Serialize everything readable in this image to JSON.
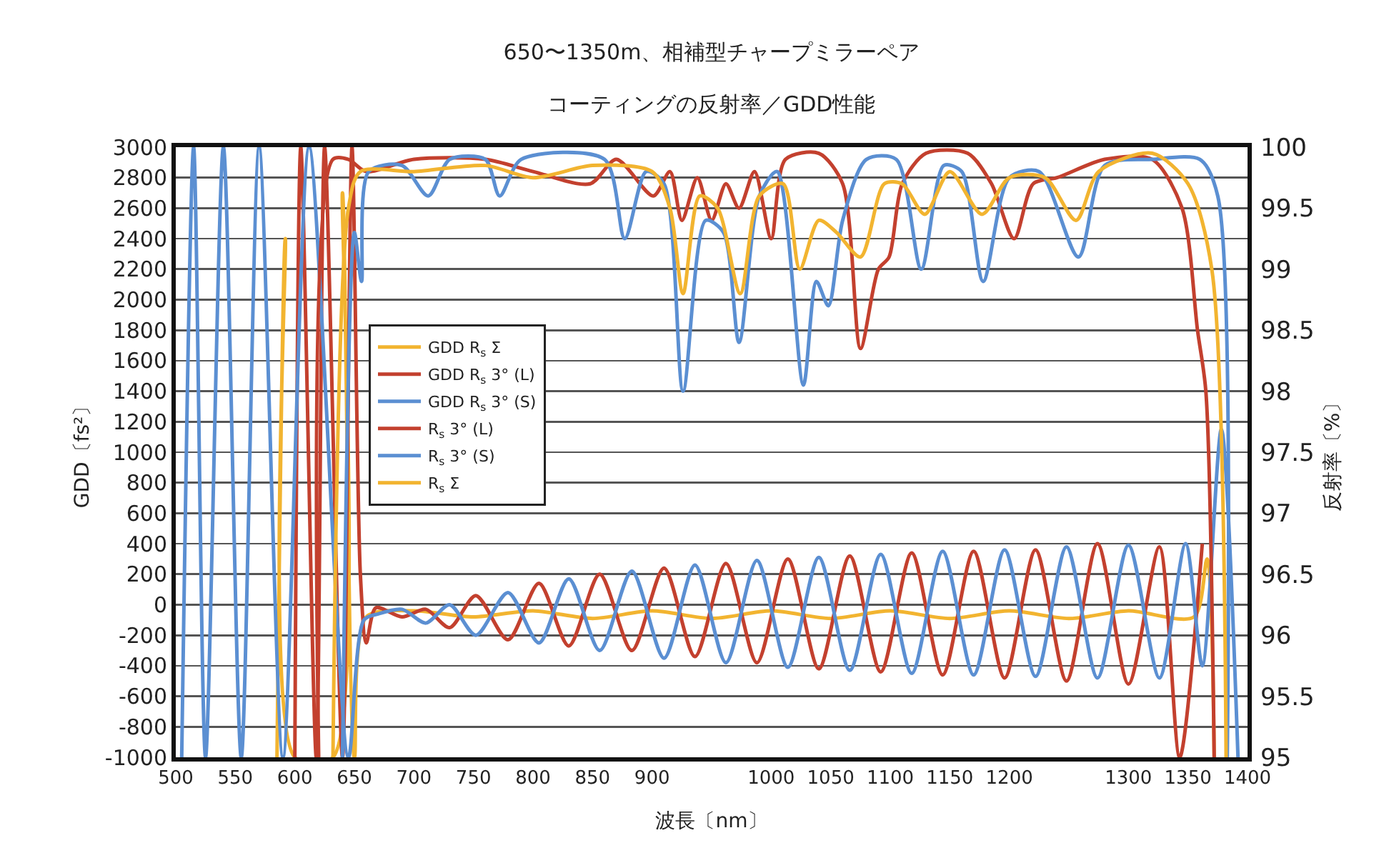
{
  "chart_data": {
    "type": "line",
    "title": "650〜1350m、相補型チャープミラーペア",
    "subtitle": "コーティングの反射率／GDD性能",
    "xlabel": "波長〔nm〕",
    "ylabel": "GDD〔fs²〕",
    "y2label": "反射率〔%〕",
    "xlim": [
      500,
      1400
    ],
    "xticks": [
      500,
      550,
      600,
      650,
      700,
      750,
      800,
      850,
      900,
      1000,
      1050,
      1100,
      1150,
      1200,
      1300,
      1350,
      1400
    ],
    "ylim": [
      -1000,
      3000
    ],
    "yticks": [
      -1000,
      -800,
      -600,
      -400,
      -200,
      0,
      200,
      400,
      600,
      800,
      1000,
      1200,
      1400,
      1600,
      1800,
      2000,
      2200,
      2400,
      2600,
      2800,
      3000
    ],
    "y2lim": [
      95,
      100
    ],
    "y2ticks": [
      95,
      95.5,
      96,
      96.5,
      97,
      97.5,
      98,
      98.5,
      99,
      99.5,
      100
    ],
    "grid": "y",
    "legend": "left",
    "series": [
      {
        "name": "GDD R$_{s}$ Σ",
        "color": "#f2b430",
        "x": [
          585,
          592,
          600,
          632,
          640,
          650,
          660,
          700,
          750,
          800,
          850,
          900,
          950,
          1000,
          1050,
          1100,
          1150,
          1200,
          1250,
          1300,
          1355,
          1366,
          1372
        ],
        "values": [
          -1000,
          2400,
          -1000,
          -1000,
          2700,
          -1000,
          -80,
          -40,
          -80,
          -40,
          -90,
          -40,
          -90,
          -40,
          -90,
          -40,
          -90,
          -40,
          -90,
          -40,
          -80,
          300,
          -1000
        ]
      },
      {
        "name": "GDD R$_{s}$ 3° (L)",
        "color": "#c3402e",
        "x": [
          600,
          605,
          618,
          625,
          640,
          648,
          655,
          660,
          668,
          690,
          710,
          730,
          752,
          779,
          805,
          830,
          856,
          883,
          910,
          936,
          962,
          988,
          1014,
          1040,
          1066,
          1092,
          1118,
          1144,
          1170,
          1196,
          1222,
          1248,
          1274,
          1300,
          1326,
          1343,
          1362
        ],
        "values": [
          -1000,
          3000,
          -1000,
          3000,
          -1000,
          3000,
          200,
          -250,
          -20,
          -80,
          -30,
          -150,
          60,
          -230,
          140,
          -270,
          200,
          -300,
          240,
          -340,
          270,
          -380,
          300,
          -420,
          320,
          -440,
          340,
          -460,
          350,
          -480,
          360,
          -500,
          400,
          -520,
          380,
          -1000,
          400
        ]
      },
      {
        "name": "GDD R$_{s}$ 3° (S)",
        "color": "#5b8fd2",
        "x": [
          505,
          515,
          525,
          540,
          555,
          570,
          590,
          612,
          645,
          658,
          670,
          690,
          710,
          730,
          752,
          779,
          805,
          830,
          856,
          883,
          910,
          936,
          962,
          988,
          1014,
          1040,
          1066,
          1092,
          1118,
          1144,
          1170,
          1196,
          1222,
          1248,
          1274,
          1300,
          1326,
          1348,
          1362,
          1378,
          1392
        ],
        "values": [
          -1000,
          3000,
          -1000,
          3000,
          -1000,
          3000,
          -1000,
          3000,
          -1000,
          -100,
          -60,
          -30,
          -120,
          0,
          -200,
          80,
          -250,
          170,
          -300,
          220,
          -350,
          260,
          -380,
          290,
          -410,
          310,
          -430,
          330,
          -450,
          350,
          -460,
          360,
          -470,
          380,
          -480,
          390,
          -480,
          400,
          -400,
          1150,
          -1000
        ]
      },
      {
        "name": "R$_{s}$ 3° (L)",
        "color": "#c3402e",
        "axis": "y2",
        "x": [
          620,
          632,
          645,
          660,
          700,
          760,
          800,
          848,
          870,
          901,
          915,
          925,
          938,
          950,
          962,
          973,
          986,
          1000,
          1012,
          1040,
          1060,
          1075,
          1090,
          1099,
          1110,
          1130,
          1165,
          1185,
          1204,
          1220,
          1240,
          1280,
          1320,
          1345,
          1358,
          1365,
          1372
        ],
        "values": [
          95,
          99.9,
          99.9,
          99.8,
          99.9,
          99.9,
          99.8,
          99.7,
          99.9,
          99.6,
          99.8,
          99.4,
          99.75,
          99.4,
          99.7,
          99.5,
          99.8,
          99.25,
          99.9,
          99.95,
          99.7,
          98.35,
          99.0,
          99.1,
          99.7,
          99.95,
          99.95,
          99.7,
          99.25,
          99.7,
          99.75,
          99.9,
          99.9,
          99.5,
          98.5,
          98.0,
          95
        ]
      },
      {
        "name": "R$_{s}$ 3° (S)",
        "color": "#5b8fd2",
        "axis": "y2",
        "x": [
          640,
          650,
          656,
          662,
          690,
          712,
          730,
          760,
          772,
          790,
          860,
          877,
          895,
          910,
          926,
          945,
          960,
          973,
          990,
          1005,
          1027,
          1038,
          1048,
          1060,
          1080,
          1105,
          1126,
          1145,
          1160,
          1178,
          1200,
          1225,
          1258,
          1280,
          1320,
          1360,
          1375,
          1383
        ],
        "values": [
          95,
          99.3,
          98.9,
          99.8,
          99.85,
          99.6,
          99.9,
          99.9,
          99.6,
          99.9,
          99.9,
          99.25,
          99.8,
          99.7,
          98.0,
          99.4,
          99.3,
          98.4,
          99.6,
          99.8,
          98.05,
          98.9,
          98.7,
          99.4,
          99.9,
          99.9,
          99.0,
          99.85,
          99.8,
          98.9,
          99.75,
          99.8,
          99.1,
          99.85,
          99.9,
          99.9,
          99.6,
          95
        ]
      },
      {
        "name": "R$_{s}$ Σ",
        "color": "#f2b430",
        "axis": "y2",
        "x": [
          632,
          645,
          655,
          700,
          760,
          800,
          850,
          900,
          915,
          926,
          940,
          955,
          974,
          990,
          1010,
          1024,
          1040,
          1055,
          1075,
          1095,
          1110,
          1129,
          1150,
          1177,
          1200,
          1230,
          1256,
          1275,
          1320,
          1350,
          1370,
          1382
        ],
        "values": [
          95,
          99.5,
          99.8,
          99.8,
          99.85,
          99.75,
          99.85,
          99.8,
          99.5,
          98.8,
          99.6,
          99.5,
          98.8,
          99.6,
          99.7,
          99.0,
          99.4,
          99.3,
          99.1,
          99.7,
          99.7,
          99.45,
          99.8,
          99.45,
          99.75,
          99.75,
          99.4,
          99.8,
          99.95,
          99.7,
          99.0,
          95
        ]
      }
    ]
  }
}
